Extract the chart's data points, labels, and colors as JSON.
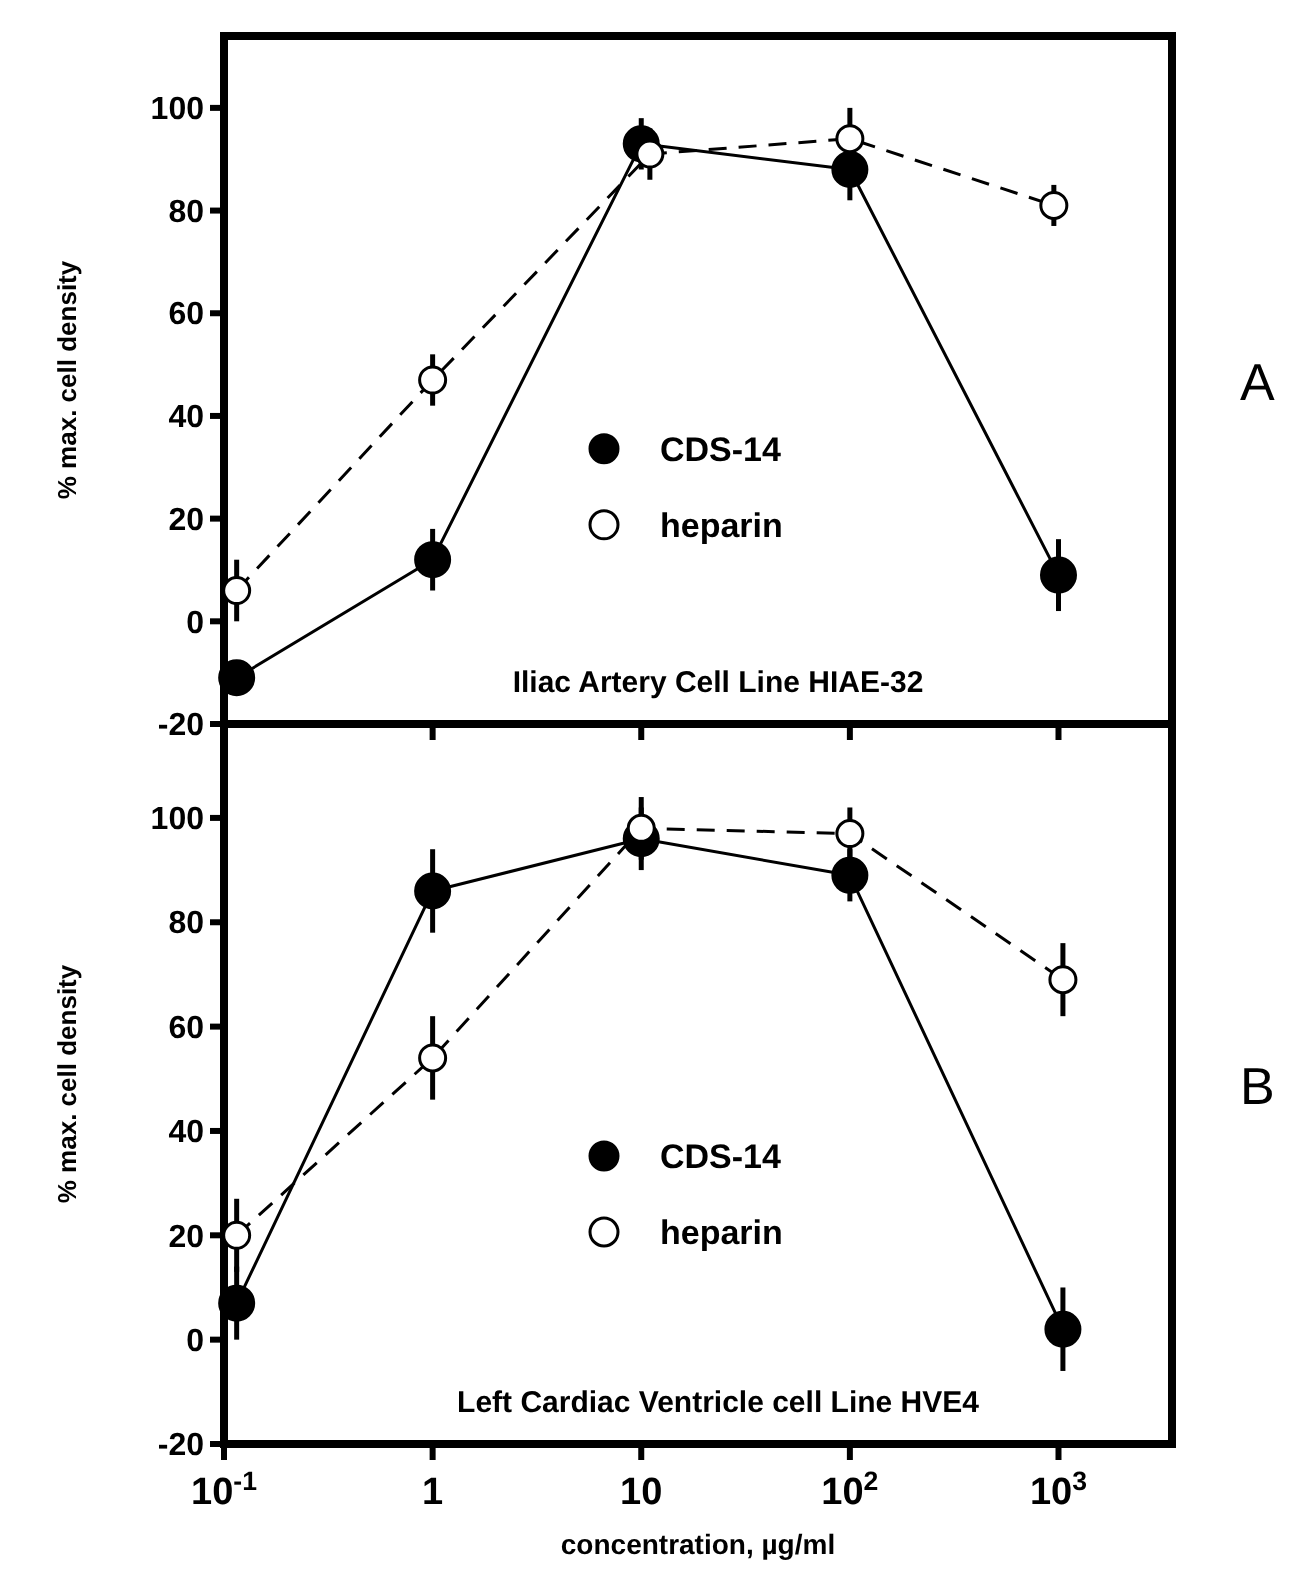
{
  "chart_data": [
    {
      "type": "line",
      "ylabel": "% max. cell density",
      "log": "x",
      "xlim": [
        0.1,
        3500
      ],
      "ylim": [
        -20,
        114
      ],
      "xticks": [
        {
          "value": 0.1,
          "label": null
        },
        {
          "value": 1,
          "label": null
        },
        {
          "value": 10,
          "label": null
        },
        {
          "value": 100,
          "label": null
        },
        {
          "value": 1000,
          "label": null
        }
      ],
      "yticks": [
        -20,
        0,
        20,
        40,
        60,
        80,
        100
      ],
      "tick_labels": "y",
      "legend": "center",
      "marker": "circle",
      "grid": false,
      "series": [
        {
          "name": "CDS-14",
          "color": "#000000",
          "line_style": "solid",
          "x": [
            0.115,
            1,
            10,
            100,
            1000
          ],
          "values": [
            -11,
            12,
            93,
            88,
            9
          ],
          "errors": [
            3,
            6,
            5,
            6,
            7
          ]
        },
        {
          "name": "heparin",
          "color": "#000000",
          "line_style": "dashed",
          "x": [
            0.115,
            1,
            11,
            100,
            950
          ],
          "values": [
            6,
            47,
            91,
            94,
            81
          ],
          "errors": [
            6,
            5,
            5,
            6,
            4
          ]
        }
      ],
      "annotations": [
        "Iliac Artery Cell Line HIAE-32",
        "A"
      ]
    },
    {
      "type": "line",
      "ylabel": "% max. cell density",
      "xlabel": "concentration, µg/ml",
      "log": "x",
      "xlim": [
        0.1,
        3500
      ],
      "ylim": [
        -20,
        118
      ],
      "xticks": [
        {
          "value": 0.1,
          "label": "10$^{-1}$"
        },
        1,
        10,
        {
          "value": 100,
          "label": "10$^{2}$"
        },
        {
          "value": 1000,
          "label": "10$^{3}$"
        }
      ],
      "yticks": [
        -20,
        0,
        20,
        40,
        60,
        80,
        100
      ],
      "legend": "center",
      "marker": "circle",
      "grid": false,
      "series": [
        {
          "name": "CDS-14",
          "color": "#000000",
          "line_style": "solid",
          "x": [
            0.115,
            1,
            10,
            100,
            1050
          ],
          "values": [
            7,
            86,
            96,
            89,
            2
          ],
          "errors": [
            7,
            8,
            6,
            5,
            8
          ]
        },
        {
          "name": "heparin",
          "color": "#000000",
          "line_style": "dashed",
          "x": [
            0.115,
            1,
            10,
            100,
            1050
          ],
          "values": [
            20,
            54,
            98,
            97,
            69
          ],
          "errors": [
            7,
            8,
            6,
            5,
            7
          ]
        }
      ],
      "annotations": [
        "Left Cardiac Ventricle cell Line HVE4",
        "B"
      ]
    }
  ]
}
